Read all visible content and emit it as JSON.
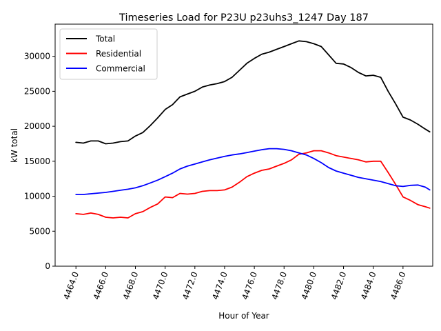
{
  "chart_data": {
    "type": "line",
    "title": "Timeseries Load for P23U p23uhs3_1247  Day 187",
    "xlabel": "Hour of Year",
    "ylabel": "kW total",
    "xlim": [
      4462.6,
      4488.0
    ],
    "ylim": [
      0,
      34600
    ],
    "x_ticks": [
      4464,
      4466,
      4468,
      4470,
      4472,
      4474,
      4476,
      4478,
      4480,
      4482,
      4484,
      4486
    ],
    "x_tick_labels": [
      "4464.0",
      "4466.0",
      "4468.0",
      "4470.0",
      "4472.0",
      "4474.0",
      "4476.0",
      "4478.0",
      "4480.0",
      "4482.0",
      "4484.0",
      "4486.0"
    ],
    "y_ticks": [
      0,
      5000,
      10000,
      15000,
      20000,
      25000,
      30000
    ],
    "y_tick_labels": [
      "0",
      "5000",
      "10000",
      "15000",
      "20000",
      "25000",
      "30000"
    ],
    "grid": false,
    "legend_position": "top-left",
    "series": [
      {
        "name": "Total",
        "color": "#000000",
        "points": [
          [
            4464.0,
            17700
          ],
          [
            4464.5,
            17600
          ],
          [
            4465.0,
            17900
          ],
          [
            4465.5,
            17900
          ],
          [
            4466.0,
            17500
          ],
          [
            4466.5,
            17600
          ],
          [
            4467.0,
            17800
          ],
          [
            4467.5,
            17900
          ],
          [
            4468.0,
            18600
          ],
          [
            4468.5,
            19100
          ],
          [
            4469.0,
            20100
          ],
          [
            4469.5,
            21200
          ],
          [
            4470.0,
            22400
          ],
          [
            4470.5,
            23100
          ],
          [
            4471.0,
            24200
          ],
          [
            4471.5,
            24600
          ],
          [
            4472.0,
            25000
          ],
          [
            4472.5,
            25600
          ],
          [
            4473.0,
            25900
          ],
          [
            4473.5,
            26100
          ],
          [
            4474.0,
            26400
          ],
          [
            4474.5,
            27000
          ],
          [
            4475.0,
            28000
          ],
          [
            4475.5,
            29000
          ],
          [
            4476.0,
            29700
          ],
          [
            4476.5,
            30300
          ],
          [
            4477.0,
            30600
          ],
          [
            4477.5,
            31000
          ],
          [
            4478.0,
            31400
          ],
          [
            4478.5,
            31800
          ],
          [
            4479.0,
            32200
          ],
          [
            4479.5,
            32100
          ],
          [
            4480.0,
            31800
          ],
          [
            4480.5,
            31400
          ],
          [
            4481.0,
            30200
          ],
          [
            4481.5,
            29000
          ],
          [
            4482.0,
            28900
          ],
          [
            4482.5,
            28400
          ],
          [
            4483.0,
            27700
          ],
          [
            4483.5,
            27200
          ],
          [
            4484.0,
            27300
          ],
          [
            4484.5,
            27000
          ],
          [
            4485.0,
            25000
          ],
          [
            4485.5,
            23200
          ],
          [
            4486.0,
            21300
          ],
          [
            4486.5,
            20900
          ],
          [
            4487.0,
            20300
          ],
          [
            4487.5,
            19600
          ],
          [
            4487.8,
            19200
          ]
        ]
      },
      {
        "name": "Residential",
        "color": "#ff0000",
        "points": [
          [
            4464.0,
            7500
          ],
          [
            4464.5,
            7400
          ],
          [
            4465.0,
            7600
          ],
          [
            4465.5,
            7400
          ],
          [
            4466.0,
            7000
          ],
          [
            4466.5,
            6900
          ],
          [
            4467.0,
            7000
          ],
          [
            4467.5,
            6900
          ],
          [
            4468.0,
            7500
          ],
          [
            4468.5,
            7800
          ],
          [
            4469.0,
            8400
          ],
          [
            4469.5,
            8900
          ],
          [
            4470.0,
            9900
          ],
          [
            4470.5,
            9800
          ],
          [
            4471.0,
            10400
          ],
          [
            4471.5,
            10300
          ],
          [
            4472.0,
            10400
          ],
          [
            4472.5,
            10700
          ],
          [
            4473.0,
            10800
          ],
          [
            4473.5,
            10800
          ],
          [
            4474.0,
            10900
          ],
          [
            4474.5,
            11300
          ],
          [
            4475.0,
            12000
          ],
          [
            4475.5,
            12800
          ],
          [
            4476.0,
            13300
          ],
          [
            4476.5,
            13700
          ],
          [
            4477.0,
            13900
          ],
          [
            4477.5,
            14300
          ],
          [
            4478.0,
            14700
          ],
          [
            4478.5,
            15200
          ],
          [
            4479.0,
            16000
          ],
          [
            4479.5,
            16200
          ],
          [
            4480.0,
            16500
          ],
          [
            4480.5,
            16500
          ],
          [
            4481.0,
            16200
          ],
          [
            4481.5,
            15800
          ],
          [
            4482.0,
            15600
          ],
          [
            4482.5,
            15400
          ],
          [
            4483.0,
            15200
          ],
          [
            4483.5,
            14900
          ],
          [
            4484.0,
            15000
          ],
          [
            4484.5,
            15000
          ],
          [
            4485.0,
            13400
          ],
          [
            4485.5,
            11700
          ],
          [
            4486.0,
            9900
          ],
          [
            4486.5,
            9400
          ],
          [
            4487.0,
            8800
          ],
          [
            4487.5,
            8500
          ],
          [
            4487.8,
            8300
          ]
        ]
      },
      {
        "name": "Commercial",
        "color": "#0000ff",
        "points": [
          [
            4464.0,
            10250
          ],
          [
            4464.5,
            10250
          ],
          [
            4465.0,
            10350
          ],
          [
            4465.5,
            10450
          ],
          [
            4466.0,
            10550
          ],
          [
            4466.5,
            10700
          ],
          [
            4467.0,
            10850
          ],
          [
            4467.5,
            11000
          ],
          [
            4468.0,
            11200
          ],
          [
            4468.5,
            11500
          ],
          [
            4469.0,
            11900
          ],
          [
            4469.5,
            12300
          ],
          [
            4470.0,
            12800
          ],
          [
            4470.5,
            13300
          ],
          [
            4471.0,
            13900
          ],
          [
            4471.5,
            14300
          ],
          [
            4472.0,
            14600
          ],
          [
            4472.5,
            14900
          ],
          [
            4473.0,
            15200
          ],
          [
            4473.5,
            15450
          ],
          [
            4474.0,
            15700
          ],
          [
            4474.5,
            15900
          ],
          [
            4475.0,
            16050
          ],
          [
            4475.5,
            16250
          ],
          [
            4476.0,
            16450
          ],
          [
            4476.5,
            16650
          ],
          [
            4477.0,
            16800
          ],
          [
            4477.5,
            16800
          ],
          [
            4478.0,
            16700
          ],
          [
            4478.5,
            16500
          ],
          [
            4479.0,
            16200
          ],
          [
            4479.5,
            15900
          ],
          [
            4480.0,
            15400
          ],
          [
            4480.5,
            14800
          ],
          [
            4481.0,
            14100
          ],
          [
            4481.5,
            13600
          ],
          [
            4482.0,
            13300
          ],
          [
            4482.5,
            13000
          ],
          [
            4483.0,
            12700
          ],
          [
            4483.5,
            12500
          ],
          [
            4484.0,
            12300
          ],
          [
            4484.5,
            12100
          ],
          [
            4485.0,
            11800
          ],
          [
            4485.5,
            11500
          ],
          [
            4486.0,
            11400
          ],
          [
            4486.5,
            11550
          ],
          [
            4487.0,
            11600
          ],
          [
            4487.5,
            11300
          ],
          [
            4487.8,
            10900
          ]
        ]
      }
    ]
  }
}
